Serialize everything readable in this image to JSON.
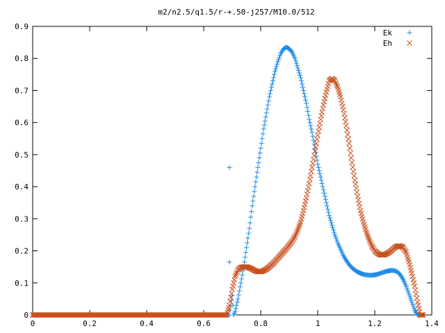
{
  "chart_data": {
    "type": "scatter",
    "title": "m2/n2.5/q1.5/r-+.50-j257/M10.0/512",
    "xlim": [
      0,
      1.4
    ],
    "ylim": [
      0,
      0.9
    ],
    "xticks": [
      "0",
      "0.2",
      "0.4",
      "0.6",
      "0.8",
      "1",
      "1.2",
      "1.4"
    ],
    "yticks": [
      "0",
      "0.1",
      "0.2",
      "0.3",
      "0.4",
      "0.5",
      "0.6",
      "0.7",
      "0.8",
      "0.9"
    ],
    "legend_position": "top-right",
    "grid": false,
    "series": [
      {
        "name": "Ek",
        "marker": "+",
        "color": "#1e8ae6",
        "points": [
          [
            0.0,
            0.0
          ],
          [
            0.1,
            0.0
          ],
          [
            0.2,
            0.0
          ],
          [
            0.3,
            0.0
          ],
          [
            0.4,
            0.0
          ],
          [
            0.5,
            0.0
          ],
          [
            0.6,
            0.0
          ],
          [
            0.69,
            0.0
          ],
          [
            0.69,
            0.46
          ],
          [
            0.69,
            0.165
          ],
          [
            0.7,
            0.06
          ],
          [
            0.705,
            0.0
          ],
          [
            0.71,
            0.01
          ],
          [
            0.72,
            0.05
          ],
          [
            0.73,
            0.1
          ],
          [
            0.74,
            0.15
          ],
          [
            0.75,
            0.21
          ],
          [
            0.76,
            0.27
          ],
          [
            0.77,
            0.34
          ],
          [
            0.78,
            0.4
          ],
          [
            0.79,
            0.46
          ],
          [
            0.8,
            0.52
          ],
          [
            0.81,
            0.58
          ],
          [
            0.82,
            0.63
          ],
          [
            0.83,
            0.68
          ],
          [
            0.84,
            0.72
          ],
          [
            0.85,
            0.76
          ],
          [
            0.86,
            0.79
          ],
          [
            0.87,
            0.815
          ],
          [
            0.88,
            0.83
          ],
          [
            0.89,
            0.835
          ],
          [
            0.9,
            0.83
          ],
          [
            0.91,
            0.82
          ],
          [
            0.92,
            0.8
          ],
          [
            0.93,
            0.77
          ],
          [
            0.94,
            0.74
          ],
          [
            0.95,
            0.7
          ],
          [
            0.96,
            0.66
          ],
          [
            0.97,
            0.61
          ],
          [
            0.98,
            0.57
          ],
          [
            0.99,
            0.52
          ],
          [
            1.0,
            0.47
          ],
          [
            1.01,
            0.43
          ],
          [
            1.02,
            0.39
          ],
          [
            1.03,
            0.35
          ],
          [
            1.04,
            0.31
          ],
          [
            1.05,
            0.28
          ],
          [
            1.06,
            0.25
          ],
          [
            1.07,
            0.225
          ],
          [
            1.08,
            0.205
          ],
          [
            1.09,
            0.185
          ],
          [
            1.1,
            0.17
          ],
          [
            1.11,
            0.157
          ],
          [
            1.12,
            0.147
          ],
          [
            1.13,
            0.14
          ],
          [
            1.14,
            0.134
          ],
          [
            1.15,
            0.13
          ],
          [
            1.16,
            0.127
          ],
          [
            1.17,
            0.125
          ],
          [
            1.18,
            0.124
          ],
          [
            1.19,
            0.124
          ],
          [
            1.2,
            0.125
          ],
          [
            1.21,
            0.127
          ],
          [
            1.22,
            0.13
          ],
          [
            1.23,
            0.133
          ],
          [
            1.24,
            0.136
          ],
          [
            1.25,
            0.138
          ],
          [
            1.26,
            0.139
          ],
          [
            1.27,
            0.138
          ],
          [
            1.28,
            0.134
          ],
          [
            1.29,
            0.125
          ],
          [
            1.3,
            0.11
          ],
          [
            1.31,
            0.09
          ],
          [
            1.32,
            0.065
          ],
          [
            1.33,
            0.04
          ],
          [
            1.34,
            0.015
          ],
          [
            1.35,
            0.0
          ],
          [
            1.36,
            0.0
          ]
        ]
      },
      {
        "name": "Eh",
        "marker": "x",
        "color": "#c8501e",
        "points": [
          [
            0.0,
            0.0
          ],
          [
            0.1,
            0.0
          ],
          [
            0.2,
            0.0
          ],
          [
            0.3,
            0.0
          ],
          [
            0.4,
            0.0
          ],
          [
            0.5,
            0.0
          ],
          [
            0.6,
            0.0
          ],
          [
            0.68,
            0.0
          ],
          [
            0.69,
            0.03
          ],
          [
            0.7,
            0.08
          ],
          [
            0.71,
            0.12
          ],
          [
            0.72,
            0.14
          ],
          [
            0.73,
            0.148
          ],
          [
            0.74,
            0.15
          ],
          [
            0.75,
            0.15
          ],
          [
            0.76,
            0.147
          ],
          [
            0.77,
            0.143
          ],
          [
            0.78,
            0.138
          ],
          [
            0.79,
            0.135
          ],
          [
            0.8,
            0.135
          ],
          [
            0.81,
            0.138
          ],
          [
            0.82,
            0.143
          ],
          [
            0.83,
            0.15
          ],
          [
            0.84,
            0.158
          ],
          [
            0.85,
            0.167
          ],
          [
            0.86,
            0.177
          ],
          [
            0.87,
            0.187
          ],
          [
            0.88,
            0.197
          ],
          [
            0.89,
            0.207
          ],
          [
            0.9,
            0.218
          ],
          [
            0.91,
            0.23
          ],
          [
            0.92,
            0.245
          ],
          [
            0.93,
            0.265
          ],
          [
            0.94,
            0.29
          ],
          [
            0.95,
            0.325
          ],
          [
            0.96,
            0.365
          ],
          [
            0.97,
            0.41
          ],
          [
            0.98,
            0.46
          ],
          [
            0.99,
            0.51
          ],
          [
            1.0,
            0.56
          ],
          [
            1.01,
            0.61
          ],
          [
            1.02,
            0.655
          ],
          [
            1.03,
            0.695
          ],
          [
            1.04,
            0.73
          ],
          [
            1.05,
            0.738
          ],
          [
            1.06,
            0.73
          ],
          [
            1.07,
            0.71
          ],
          [
            1.08,
            0.68
          ],
          [
            1.09,
            0.64
          ],
          [
            1.1,
            0.59
          ],
          [
            1.11,
            0.535
          ],
          [
            1.12,
            0.475
          ],
          [
            1.13,
            0.42
          ],
          [
            1.14,
            0.37
          ],
          [
            1.15,
            0.325
          ],
          [
            1.16,
            0.29
          ],
          [
            1.17,
            0.26
          ],
          [
            1.18,
            0.235
          ],
          [
            1.19,
            0.215
          ],
          [
            1.2,
            0.2
          ],
          [
            1.21,
            0.192
          ],
          [
            1.22,
            0.187
          ],
          [
            1.23,
            0.187
          ],
          [
            1.24,
            0.19
          ],
          [
            1.25,
            0.195
          ],
          [
            1.26,
            0.202
          ],
          [
            1.27,
            0.21
          ],
          [
            1.28,
            0.215
          ],
          [
            1.29,
            0.215
          ],
          [
            1.3,
            0.21
          ],
          [
            1.31,
            0.195
          ],
          [
            1.32,
            0.165
          ],
          [
            1.33,
            0.13
          ],
          [
            1.34,
            0.09
          ],
          [
            1.35,
            0.04
          ],
          [
            1.36,
            0.0
          ],
          [
            1.37,
            0.0
          ]
        ]
      }
    ]
  }
}
